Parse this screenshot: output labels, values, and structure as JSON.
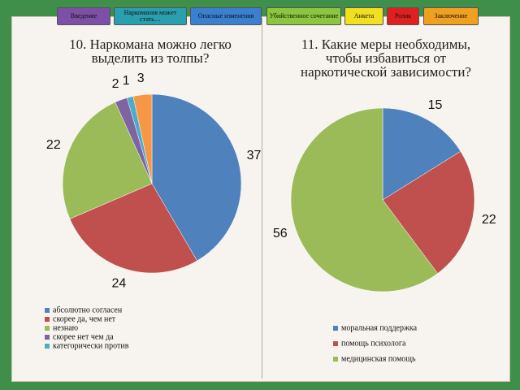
{
  "nav": [
    {
      "label": "Введение",
      "color": "#7d4fa6"
    },
    {
      "label": "Наркомания может стать…",
      "color": "#2a9fb0"
    },
    {
      "label": "Опасные изменения",
      "color": "#3b7fd0"
    },
    {
      "label": "Убийственное сочетание",
      "color": "#8cc63f"
    },
    {
      "label": "Анкета",
      "color": "#f0e020"
    },
    {
      "label": "Ролик",
      "color": "#e02020"
    },
    {
      "label": "Заключение",
      "color": "#f0a020"
    }
  ],
  "chart_data": [
    {
      "type": "pie",
      "title": "10. Наркомана можно легко выделить из толпы?",
      "categories": [
        "абсолютно согласен",
        "скорее да, чем нет",
        "незнаю",
        "скорее нет чем да",
        "категорически против",
        null
      ],
      "values": [
        37,
        24,
        22,
        2,
        1,
        3
      ],
      "colors": [
        "#4f81bd",
        "#c0504d",
        "#9bbb59",
        "#8064a2",
        "#4bacc6",
        "#f79646"
      ]
    },
    {
      "type": "pie",
      "title": "11. Какие меры необходимы, чтобы избавиться от наркотической зависимости?",
      "categories": [
        "моральная поддержка",
        "помощь психолога",
        "медицинская помощь"
      ],
      "values": [
        15,
        22,
        56
      ],
      "colors": [
        "#4f81bd",
        "#c0504d",
        "#9bbb59"
      ]
    }
  ]
}
